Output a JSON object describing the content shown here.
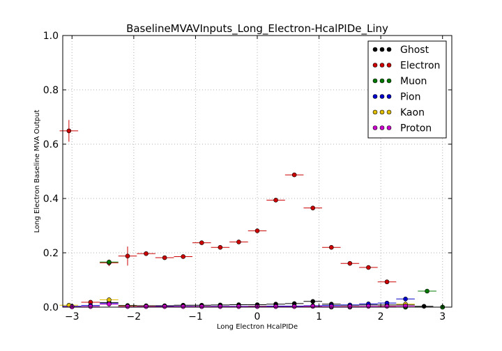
{
  "chart_data": {
    "type": "scatter",
    "title": "BaselineMVAVInputs_Long_Electron-HcalPIDe_Liny",
    "xlabel": "Long Electron HcalPIDe",
    "ylabel": "Long Electron Baseline MVA Output",
    "xlim": [
      -3.15,
      3.15
    ],
    "ylim": [
      0.0,
      1.0
    ],
    "xticks": [
      -3,
      -2,
      -1,
      0,
      1,
      2,
      3
    ],
    "xtick_labels": [
      "−3",
      "−2",
      "−1",
      "0",
      "1",
      "2",
      "3"
    ],
    "yticks": [
      0.0,
      0.2,
      0.4,
      0.6,
      0.8,
      1.0
    ],
    "ytick_labels": [
      "0.0",
      "0.2",
      "0.4",
      "0.6",
      "0.8",
      "1.0"
    ],
    "grid": true,
    "legend_position": "top-right",
    "bin_half_width": 0.15,
    "series": [
      {
        "name": "Ghost",
        "color": "#000000",
        "x": [
          -3.0,
          -2.4,
          -2.1,
          -1.8,
          -1.5,
          -1.2,
          -0.9,
          -0.6,
          -0.3,
          0.0,
          0.3,
          0.6,
          0.9,
          1.2,
          1.5,
          1.8,
          2.1,
          2.4,
          2.7,
          3.0
        ],
        "y": [
          0.002,
          0.017,
          0.006,
          0.005,
          0.005,
          0.007,
          0.007,
          0.008,
          0.009,
          0.009,
          0.011,
          0.013,
          0.021,
          0.011,
          0.007,
          0.008,
          0.008,
          0.008,
          0.003,
          0.0
        ],
        "yerr": [
          0.001,
          0.002,
          0.001,
          0.001,
          0.001,
          0.001,
          0.001,
          0.001,
          0.001,
          0.001,
          0.001,
          0.001,
          0.002,
          0.001,
          0.001,
          0.001,
          0.001,
          0.001,
          0.001,
          0.0
        ]
      },
      {
        "name": "Electron",
        "color": "#cc0000",
        "x": [
          -3.05,
          -2.7,
          -2.4,
          -2.1,
          -1.8,
          -1.5,
          -1.2,
          -0.9,
          -0.6,
          -0.3,
          0.0,
          0.3,
          0.6,
          0.9,
          1.2,
          1.5,
          1.8,
          2.1,
          2.4
        ],
        "y": [
          0.649,
          0.018,
          0.163,
          0.188,
          0.197,
          0.182,
          0.186,
          0.237,
          0.22,
          0.24,
          0.281,
          0.394,
          0.487,
          0.365,
          0.22,
          0.161,
          0.146,
          0.093,
          0.0
        ],
        "yerr": [
          0.04,
          0.004,
          0.012,
          0.035,
          0.005,
          0.004,
          0.004,
          0.003,
          0.003,
          0.003,
          0.003,
          0.003,
          0.003,
          0.003,
          0.003,
          0.003,
          0.003,
          0.004,
          0.0
        ]
      },
      {
        "name": "Muon",
        "color": "#007700",
        "x": [
          -2.4,
          1.2,
          1.5,
          2.4,
          2.75,
          3.0
        ],
        "y": [
          0.166,
          0.0,
          0.0,
          0.0,
          0.059,
          0.0
        ],
        "yerr": [
          0.008,
          0.0,
          0.0,
          0.0,
          0.008,
          0.0
        ]
      },
      {
        "name": "Pion",
        "color": "#0000cc",
        "x": [
          -3.0,
          -2.7,
          -2.4,
          -2.1,
          -1.8,
          -1.5,
          -1.2,
          -0.9,
          -0.6,
          -0.3,
          0.0,
          0.3,
          0.6,
          0.9,
          1.2,
          1.5,
          1.8,
          2.1,
          2.4
        ],
        "y": [
          0.003,
          0.006,
          0.013,
          0.004,
          0.003,
          0.003,
          0.003,
          0.003,
          0.003,
          0.003,
          0.004,
          0.004,
          0.004,
          0.005,
          0.006,
          0.008,
          0.012,
          0.015,
          0.03
        ],
        "yerr": [
          0.001,
          0.001,
          0.002,
          0.001,
          0.001,
          0.001,
          0.001,
          0.001,
          0.001,
          0.001,
          0.001,
          0.001,
          0.001,
          0.001,
          0.001,
          0.001,
          0.001,
          0.001,
          0.002
        ]
      },
      {
        "name": "Kaon",
        "color": "#ddbb00",
        "x": [
          -3.05,
          -2.4,
          -2.1,
          -1.8,
          -0.9,
          0.0,
          0.9,
          1.5,
          2.1,
          2.4
        ],
        "y": [
          0.007,
          0.027,
          0.004,
          0.003,
          0.002,
          0.003,
          0.003,
          0.003,
          0.004,
          0.011
        ],
        "yerr": [
          0.002,
          0.003,
          0.001,
          0.001,
          0.001,
          0.001,
          0.001,
          0.001,
          0.001,
          0.002
        ]
      },
      {
        "name": "Proton",
        "color": "#cc00cc",
        "x": [
          -3.0,
          -2.7,
          -2.4,
          -2.1,
          -1.8,
          -1.5,
          -1.2,
          -0.9,
          -0.6,
          -0.3,
          0.0,
          0.3,
          0.6,
          0.9,
          1.2,
          1.5,
          1.8,
          2.1,
          2.4
        ],
        "y": [
          0.001,
          0.002,
          0.011,
          0.002,
          0.002,
          0.002,
          0.002,
          0.002,
          0.002,
          0.002,
          0.002,
          0.002,
          0.002,
          0.003,
          0.002,
          0.002,
          0.003,
          0.003,
          0.004
        ],
        "yerr": [
          0.001,
          0.001,
          0.002,
          0.001,
          0.001,
          0.001,
          0.001,
          0.001,
          0.001,
          0.001,
          0.001,
          0.001,
          0.001,
          0.001,
          0.001,
          0.001,
          0.001,
          0.001,
          0.001
        ]
      }
    ]
  }
}
